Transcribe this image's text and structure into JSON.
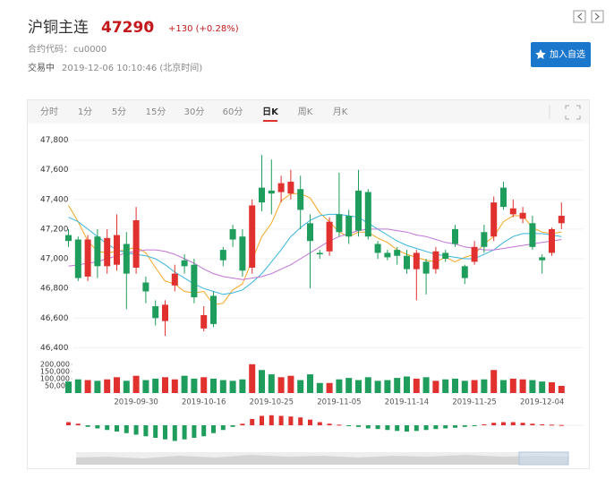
{
  "header": {
    "name": "沪铜主连",
    "price": "47290",
    "change": "+130 (+0.28%)",
    "code_label": "合约代码：",
    "code": "cu0000",
    "status": "交易中",
    "time": "2019-12-06 10:10:46 (北京时间)",
    "button": "加入自选"
  },
  "tabs": {
    "items": [
      "分时",
      "1分",
      "5分",
      "15分",
      "30分",
      "60分",
      "日K",
      "周K",
      "月K"
    ],
    "active": 6
  },
  "chart_data": {
    "type": "candlestick",
    "categories": [
      null,
      null,
      null,
      null,
      null,
      null,
      null,
      "2019-09-30",
      null,
      null,
      null,
      null,
      null,
      null,
      "2019-10-16",
      null,
      null,
      null,
      null,
      null,
      null,
      "2019-10-25",
      null,
      null,
      null,
      null,
      null,
      null,
      "2019-11-05",
      null,
      null,
      null,
      null,
      null,
      null,
      "2019-11-14",
      null,
      null,
      null,
      null,
      null,
      null,
      "2019-11-25",
      null,
      null,
      null,
      null,
      null,
      null,
      "2019-12-04",
      null,
      null
    ],
    "open": [
      47160,
      47130,
      46880,
      47150,
      46950,
      46960,
      47100,
      46940,
      46840,
      46680,
      46580,
      46820,
      46990,
      46960,
      46530,
      46750,
      47060,
      47200,
      47150,
      46940,
      47480,
      47460,
      47450,
      47440,
      47470,
      47240,
      47040,
      47050,
      47300,
      47290,
      47460,
      47450,
      47100,
      47040,
      47060,
      47020,
      46930,
      46980,
      46930,
      47040,
      47200,
      46950,
      46980,
      47180,
      47150,
      47480,
      47300,
      47270,
      47240,
      47010,
      47040,
      47240
    ],
    "high": [
      47200,
      47150,
      47160,
      47200,
      47200,
      47300,
      47180,
      47350,
      46880,
      46720,
      46720,
      46960,
      47030,
      47000,
      46680,
      46780,
      47080,
      47230,
      47200,
      47400,
      47700,
      47670,
      47560,
      47600,
      47560,
      47300,
      47060,
      47280,
      47580,
      47330,
      47600,
      47470,
      47120,
      47060,
      47080,
      47060,
      47060,
      47000,
      47080,
      47060,
      47230,
      46960,
      47120,
      47230,
      47420,
      47520,
      47400,
      47350,
      47290,
      47030,
      47210,
      47380
    ],
    "low": [
      47080,
      46850,
      46850,
      46870,
      46900,
      46920,
      46660,
      46900,
      46700,
      46550,
      46480,
      46780,
      46900,
      46700,
      46510,
      46540,
      46950,
      47080,
      46880,
      46900,
      47320,
      47300,
      47380,
      47400,
      47200,
      46800,
      47000,
      47020,
      47150,
      47100,
      47150,
      47130,
      47000,
      46990,
      46960,
      46900,
      46720,
      46760,
      46900,
      46980,
      47080,
      46830,
      46960,
      47040,
      47120,
      47330,
      47280,
      47240,
      47060,
      46900,
      47020,
      47200
    ],
    "close": [
      47120,
      46870,
      47130,
      46950,
      47140,
      47160,
      46900,
      47260,
      46780,
      46600,
      46690,
      46900,
      46950,
      46740,
      46620,
      46560,
      46990,
      47130,
      46920,
      47360,
      47380,
      47440,
      47510,
      47520,
      47330,
      47120,
      47030,
      47250,
      47180,
      47150,
      47190,
      47150,
      47040,
      47010,
      47020,
      46930,
      47040,
      46900,
      47050,
      47000,
      47100,
      46870,
      47080,
      47080,
      47380,
      47350,
      47340,
      47310,
      47080,
      46990,
      47200,
      47290
    ],
    "ma": [
      {
        "color": "#f5a623",
        "values": [
          47360,
          47250,
          47120,
          47050,
          47040,
          47050,
          47060,
          47080,
          47040,
          46940,
          46850,
          46830,
          46780,
          46770,
          46780,
          46690,
          46700,
          46790,
          46830,
          46990,
          47150,
          47240,
          47390,
          47440,
          47440,
          47410,
          47310,
          47250,
          47180,
          47150,
          47180,
          47180,
          47140,
          47110,
          47060,
          47030,
          47010,
          46990,
          46980,
          47010,
          46980,
          47010,
          47030,
          47100,
          47150,
          47250,
          47290,
          47290,
          47210,
          47180,
          47170,
          47180
        ]
      },
      {
        "color": "#39b5e0",
        "values": [
          47280,
          47250,
          47200,
          47150,
          47100,
          47060,
          47040,
          47030,
          47020,
          47000,
          46960,
          46910,
          46870,
          46830,
          46800,
          46780,
          46760,
          46770,
          46790,
          46840,
          46900,
          46980,
          47060,
          47150,
          47210,
          47260,
          47290,
          47300,
          47300,
          47290,
          47280,
          47240,
          47200,
          47160,
          47120,
          47090,
          47070,
          47050,
          47030,
          47020,
          47010,
          47000,
          47000,
          47030,
          47060,
          47110,
          47150,
          47170,
          47170,
          47170,
          47160,
          47150
        ]
      },
      {
        "color": "#c274d6",
        "values": [
          46950,
          46960,
          46970,
          46980,
          47000,
          47020,
          47040,
          47050,
          47060,
          47060,
          47050,
          47030,
          47000,
          46970,
          46930,
          46900,
          46880,
          46870,
          46860,
          46870,
          46880,
          46900,
          46930,
          46960,
          47000,
          47040,
          47080,
          47120,
          47150,
          47170,
          47190,
          47200,
          47200,
          47200,
          47190,
          47180,
          47160,
          47150,
          47130,
          47110,
          47100,
          47080,
          47070,
          47060,
          47060,
          47070,
          47080,
          47090,
          47100,
          47110,
          47120,
          47130
        ]
      }
    ],
    "ylim": [
      46360,
      47870
    ],
    "yticks": [
      {
        "value": 46400,
        "label": "46,400"
      },
      {
        "value": 46600,
        "label": "46,600"
      },
      {
        "value": 46800,
        "label": "46,800"
      },
      {
        "value": 47000,
        "label": "47,000"
      },
      {
        "value": 47200,
        "label": "47,200"
      },
      {
        "value": 47400,
        "label": "47,400"
      },
      {
        "value": 47600,
        "label": "47,600"
      },
      {
        "value": 47800,
        "label": "47,800"
      }
    ],
    "grid": true,
    "up_color": "#e0312f",
    "down_color": "#1f9d5c",
    "volume": [
      80000,
      95000,
      90000,
      85000,
      95000,
      110000,
      85000,
      120000,
      90000,
      100000,
      110000,
      95000,
      120000,
      100000,
      110000,
      100000,
      90000,
      85000,
      95000,
      200000,
      160000,
      130000,
      110000,
      120000,
      90000,
      130000,
      70000,
      70000,
      95000,
      105000,
      90000,
      110000,
      85000,
      90000,
      105000,
      115000,
      100000,
      110000,
      85000,
      95000,
      100000,
      85000,
      90000,
      95000,
      160000,
      90000,
      100000,
      95000,
      90000,
      80000,
      75000,
      50000
    ],
    "volume_ylim": [
      0,
      230000
    ],
    "volume_ticks": [
      {
        "value": 50000,
        "label": "50,000"
      },
      {
        "value": 100000,
        "label": "100,000"
      },
      {
        "value": 150000,
        "label": "150,000"
      },
      {
        "value": 200000,
        "label": "200,000"
      }
    ],
    "macd": [
      10,
      5,
      -5,
      -10,
      -15,
      -20,
      -25,
      -30,
      -35,
      -40,
      -45,
      -50,
      -45,
      -40,
      -35,
      -25,
      -15,
      -5,
      5,
      20,
      30,
      32,
      30,
      28,
      25,
      18,
      10,
      5,
      2,
      -2,
      -5,
      -10,
      -12,
      -15,
      -18,
      -20,
      -18,
      -15,
      -12,
      -10,
      -8,
      -5,
      -2,
      3,
      8,
      10,
      10,
      8,
      5,
      3,
      2,
      1
    ]
  }
}
